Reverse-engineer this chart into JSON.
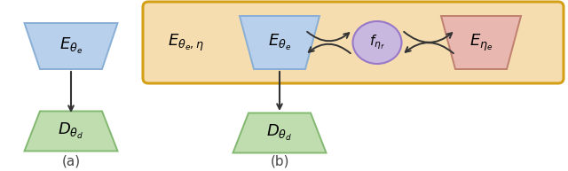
{
  "fig_width": 6.4,
  "fig_height": 1.93,
  "dpi": 100,
  "bg_color": "#ffffff",
  "trap_blue_fill": "#b8d0eb",
  "trap_blue_edge": "#8aafd4",
  "trap_green_fill": "#c0ddb0",
  "trap_green_edge": "#82b870",
  "trap_red_fill": "#e8b8b0",
  "trap_red_edge": "#c08070",
  "ellipse_fill": "#c8b8e0",
  "ellipse_edge": "#9878c8",
  "box_fill": "#f5ddb0",
  "box_edge": "#d4a017",
  "arrow_color": "#333333",
  "label_color": "#444444",
  "label_a": "(a)",
  "label_b": "(b)",
  "text_E_theta_e_left": "$E_{\\theta_e}$",
  "text_D_theta_d_left": "$D_{\\theta_d}$",
  "text_E_theta_e_eta": "$E_{\\theta_e,\\eta}$",
  "text_E_theta_e_right": "$E_{\\theta_e}$",
  "text_f_eta_f": "$f_{\\eta_f}$",
  "text_E_eta_e": "$E_{\\eta_e}$",
  "text_D_theta_d_right": "$D_{\\theta_d}$"
}
